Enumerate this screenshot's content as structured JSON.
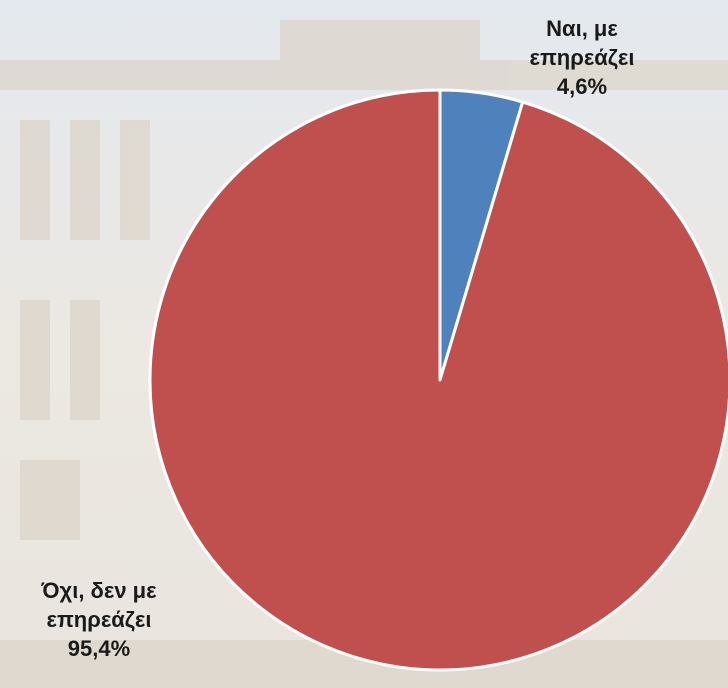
{
  "chart_data": {
    "type": "pie",
    "categories": [
      "Ναι, με επηρεάζει",
      "Όχι, δεν με επηρεάζει"
    ],
    "values": [
      4.6,
      95.4
    ],
    "value_labels": [
      "4,6%",
      "95,4%"
    ],
    "colors": [
      "#4f81bd",
      "#c0504d"
    ]
  }
}
